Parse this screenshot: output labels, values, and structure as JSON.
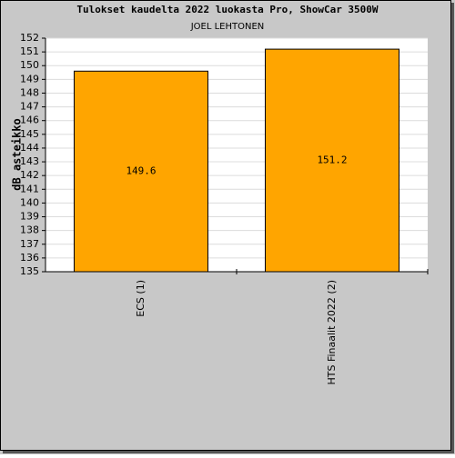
{
  "chart_data": {
    "type": "bar",
    "title": "Tulokset kaudelta 2022 luokasta Pro, ShowCar 3500W",
    "subtitle": "JOEL LEHTONEN",
    "y_label": "dB asteikko",
    "categories": [
      "ECS (1)",
      "HTS Finaalit 2022 (2)"
    ],
    "values": [
      149.6,
      151.2
    ],
    "color": "#ffa500",
    "ylim": [
      135,
      152
    ],
    "yticks": [
      135,
      136,
      137,
      138,
      139,
      140,
      141,
      142,
      143,
      144,
      145,
      146,
      147,
      148,
      149,
      150,
      151,
      152
    ],
    "grid": true
  }
}
